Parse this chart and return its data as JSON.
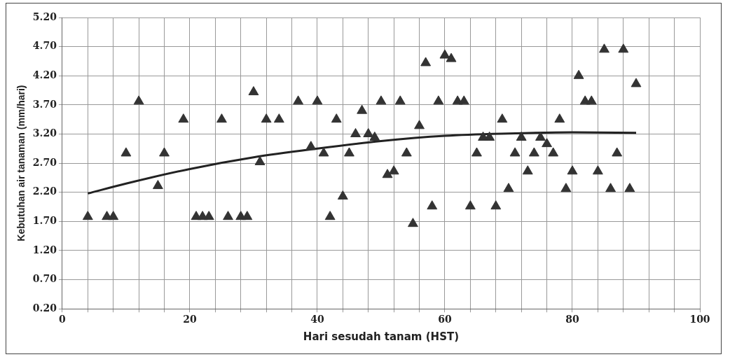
{
  "chart_data": {
    "type": "scatter",
    "xlabel": "Hari sesudah tanam (HST)",
    "ylabel": "Kebutuhan air tanaman (mm/hari)",
    "marker": "triangle",
    "grid": true,
    "legend": false,
    "xlim": [
      0,
      100
    ],
    "ylim": [
      0.2,
      5.2
    ],
    "xticks": [
      0,
      {
        "value": 4,
        "label": null
      },
      {
        "value": 8,
        "label": null
      },
      {
        "value": 12,
        "label": null
      },
      {
        "value": 16,
        "label": null
      },
      20,
      {
        "value": 24,
        "label": null
      },
      {
        "value": 28,
        "label": null
      },
      {
        "value": 32,
        "label": null
      },
      {
        "value": 36,
        "label": null
      },
      40,
      {
        "value": 44,
        "label": null
      },
      {
        "value": 48,
        "label": null
      },
      {
        "value": 52,
        "label": null
      },
      {
        "value": 56,
        "label": null
      },
      60,
      {
        "value": 64,
        "label": null
      },
      {
        "value": 68,
        "label": null
      },
      {
        "value": 72,
        "label": null
      },
      {
        "value": 76,
        "label": null
      },
      80,
      {
        "value": 84,
        "label": null
      },
      {
        "value": 88,
        "label": null
      },
      {
        "value": 92,
        "label": null
      },
      {
        "value": 96,
        "label": null
      },
      100
    ],
    "yticks": [
      {
        "value": 0.2,
        "label": "0.20"
      },
      {
        "value": 0.7,
        "label": "0.70"
      },
      {
        "value": 1.2,
        "label": "1.20"
      },
      {
        "value": 1.7,
        "label": "1.70"
      },
      {
        "value": 2.2,
        "label": "2.20"
      },
      {
        "value": 2.7,
        "label": "2.70"
      },
      {
        "value": 3.2,
        "label": "3.20"
      },
      {
        "value": 3.7,
        "label": "3.70"
      },
      {
        "value": 4.2,
        "label": "4.20"
      },
      {
        "value": 4.7,
        "label": "4.70"
      },
      {
        "value": 5.2,
        "label": "5.20"
      }
    ],
    "series": [
      {
        "color": "#333333",
        "x": [
          4,
          7,
          8,
          10,
          12,
          15,
          16,
          19,
          21,
          22,
          23,
          25,
          26,
          28,
          29,
          30,
          31,
          32,
          34,
          37,
          39,
          40,
          41,
          42,
          43,
          44,
          45,
          46,
          47,
          48,
          49,
          50,
          51,
          52,
          53,
          54,
          55,
          56,
          57,
          58,
          59,
          60,
          61,
          62,
          63,
          64,
          65,
          66,
          67,
          68,
          69,
          70,
          71,
          72,
          73,
          74,
          75,
          76,
          77,
          78,
          79,
          80,
          81,
          82,
          83,
          84,
          85,
          86,
          87,
          88,
          89,
          90
        ],
        "values": [
          1.78,
          1.78,
          1.78,
          2.87,
          3.76,
          2.31,
          2.87,
          3.45,
          1.78,
          1.78,
          1.78,
          3.45,
          1.78,
          1.78,
          1.78,
          3.92,
          2.72,
          3.45,
          3.45,
          3.76,
          2.98,
          3.76,
          2.87,
          1.78,
          3.45,
          2.13,
          2.87,
          3.2,
          3.6,
          3.2,
          3.14,
          3.76,
          2.5,
          2.56,
          3.76,
          2.87,
          1.66,
          3.34,
          4.42,
          1.96,
          3.76,
          4.55,
          4.49,
          3.76,
          3.76,
          1.96,
          2.87,
          3.14,
          3.14,
          1.96,
          3.45,
          2.26,
          2.87,
          3.14,
          2.56,
          2.87,
          3.14,
          3.03,
          2.87,
          3.45,
          2.26,
          2.56,
          4.2,
          3.76,
          3.76,
          2.56,
          4.65,
          2.26,
          2.87,
          4.65,
          2.26,
          4.06
        ]
      },
      {
        "type": "line",
        "marker": "none",
        "color": "#222222",
        "x": [
          4,
          10,
          20,
          30,
          40,
          50,
          60,
          70,
          80,
          90
        ],
        "values": [
          2.18,
          2.35,
          2.6,
          2.8,
          2.95,
          3.08,
          3.17,
          3.21,
          3.23,
          3.22
        ]
      }
    ]
  }
}
